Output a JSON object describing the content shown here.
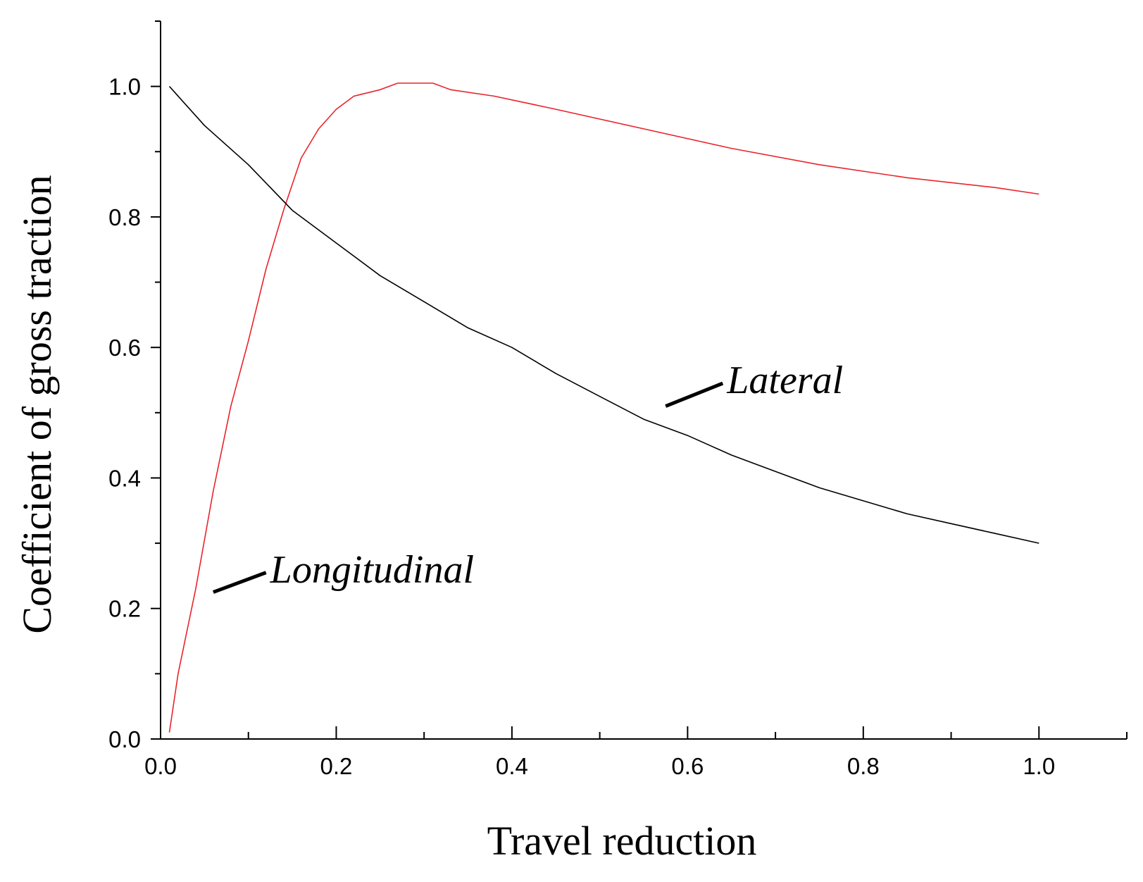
{
  "chart_data": {
    "type": "line",
    "xlabel": "Travel reduction",
    "ylabel": "Coefficient of gross traction",
    "xlim": [
      0.0,
      1.1
    ],
    "ylim": [
      0.0,
      1.1
    ],
    "x_ticks": [
      "0.0",
      "0.2",
      "0.4",
      "0.6",
      "0.8",
      "1.0"
    ],
    "y_ticks": [
      "0.0",
      "0.2",
      "0.4",
      "0.6",
      "0.8",
      "1.0"
    ],
    "grid": false,
    "series": [
      {
        "name": "Longitudinal",
        "color": "#e8242c",
        "x": [
          0.01,
          0.02,
          0.04,
          0.06,
          0.08,
          0.1,
          0.12,
          0.14,
          0.16,
          0.18,
          0.2,
          0.22,
          0.25,
          0.27,
          0.29,
          0.31,
          0.33,
          0.38,
          0.45,
          0.55,
          0.65,
          0.75,
          0.85,
          0.95,
          1.0
        ],
        "y": [
          0.01,
          0.1,
          0.23,
          0.38,
          0.51,
          0.61,
          0.72,
          0.81,
          0.89,
          0.935,
          0.965,
          0.985,
          0.995,
          1.005,
          1.005,
          1.005,
          0.995,
          0.985,
          0.965,
          0.935,
          0.905,
          0.88,
          0.86,
          0.845,
          0.835
        ],
        "label_annotation": "Longitudinal"
      },
      {
        "name": "Lateral",
        "color": "#000000",
        "x": [
          0.01,
          0.05,
          0.1,
          0.15,
          0.2,
          0.25,
          0.3,
          0.35,
          0.4,
          0.45,
          0.5,
          0.55,
          0.6,
          0.65,
          0.7,
          0.75,
          0.8,
          0.85,
          0.9,
          0.95,
          1.0
        ],
        "y": [
          1.0,
          0.94,
          0.88,
          0.81,
          0.76,
          0.71,
          0.67,
          0.63,
          0.6,
          0.56,
          0.525,
          0.49,
          0.465,
          0.435,
          0.41,
          0.385,
          0.365,
          0.345,
          0.33,
          0.315,
          0.3
        ],
        "label_annotation": "Lateral"
      }
    ],
    "annotations": [
      {
        "text": "Longitudinal",
        "series": "Longitudinal",
        "pointer_from": [
          0.12,
          0.255
        ],
        "pointer_to": [
          0.06,
          0.225
        ]
      },
      {
        "text": "Lateral",
        "series": "Lateral",
        "pointer_from": [
          0.64,
          0.545
        ],
        "pointer_to": [
          0.575,
          0.51
        ]
      }
    ]
  }
}
